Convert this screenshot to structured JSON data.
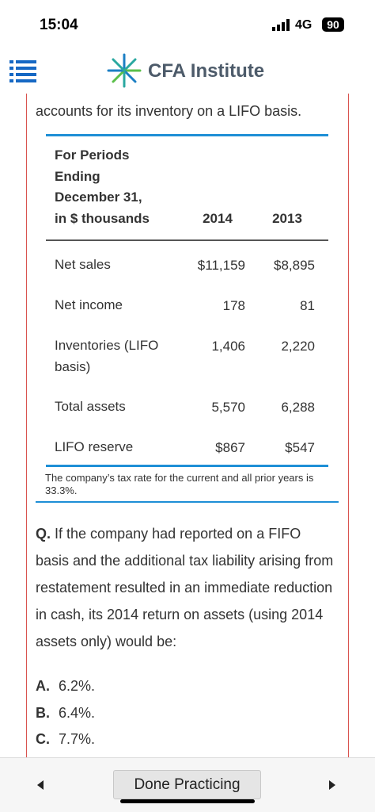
{
  "status_bar": {
    "time": "15:04",
    "network": "4G",
    "battery": "90"
  },
  "header": {
    "title": "CFA Institute"
  },
  "content": {
    "intro": "accounts for its inventory on a LIFO basis.",
    "table": {
      "header_lines": [
        "For Periods",
        "Ending",
        "December 31,",
        "in $ thousands"
      ],
      "columns": [
        "2014",
        "2013"
      ],
      "rows": [
        [
          "Net sales",
          "$11,159",
          "$8,895"
        ],
        [
          "Net income",
          "178",
          "81"
        ],
        [
          "Inventories (LIFO basis)",
          "1,406",
          "2,220"
        ],
        [
          "Total assets",
          "5,570",
          "6,288"
        ],
        [
          "LIFO reserve",
          "$867",
          "$547"
        ]
      ]
    },
    "note": "The company’s tax rate for the current and all prior years is 33.3%.",
    "question": {
      "label": "Q.",
      "text": "If the company had reported on a FIFO basis and the additional tax liability arising from restatement resulted in an immediate reduction in cash, its 2014 return on assets (using 2014 assets only) would be:"
    },
    "options": [
      {
        "letter": "A.",
        "text": "6.2%."
      },
      {
        "letter": "B.",
        "text": "6.4%."
      },
      {
        "letter": "C.",
        "text": "7.7%."
      }
    ]
  },
  "footer": {
    "button": "Done Practicing"
  }
}
